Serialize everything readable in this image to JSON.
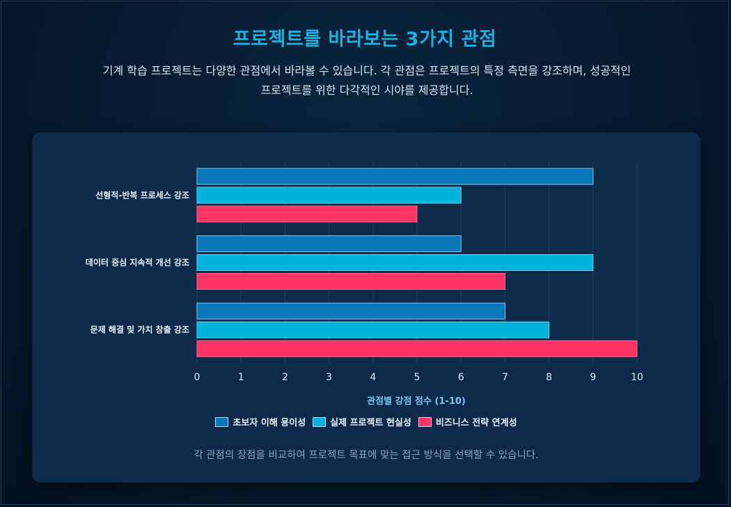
{
  "header": {
    "title": "프로젝트를 바라보는 3가지 관점",
    "subtitle": "기계 학습 프로젝트는 다양한 관점에서 바라볼 수 있습니다. 각 관점은 프로젝트의 특정 측면을 강조하며, 성공적인 프로젝트를 위한 다각적인 시야를 제공합니다."
  },
  "footnote": "각 관점의 장점을 비교하여 프로젝트 목표에 맞는 접근 방식을 선택할 수 있습니다.",
  "chart_data": {
    "type": "bar",
    "orientation": "horizontal",
    "categories": [
      "선형적-반복 프로세스 강조",
      "데이터 중심 지속적 개선 강조",
      "문제 해결 및 가치 창출 강조"
    ],
    "series": [
      {
        "name": "초보자 이해 용이성",
        "values": [
          9,
          6,
          7
        ],
        "color": "#0a78b8"
      },
      {
        "name": "실제 프로젝트 현실성",
        "values": [
          6,
          9,
          8
        ],
        "color": "#00b4dc"
      },
      {
        "name": "비즈니스 전략 연계성",
        "values": [
          5,
          7,
          10
        ],
        "color": "#ff3366"
      }
    ],
    "xlabel": "관점별 강점 점수 (1-10)",
    "xlim": [
      0,
      10
    ],
    "xticks": [
      "0",
      "1",
      "2",
      "3",
      "4",
      "5",
      "6",
      "7",
      "8",
      "9",
      "10"
    ],
    "grid": true,
    "legend_position": "bottom"
  }
}
